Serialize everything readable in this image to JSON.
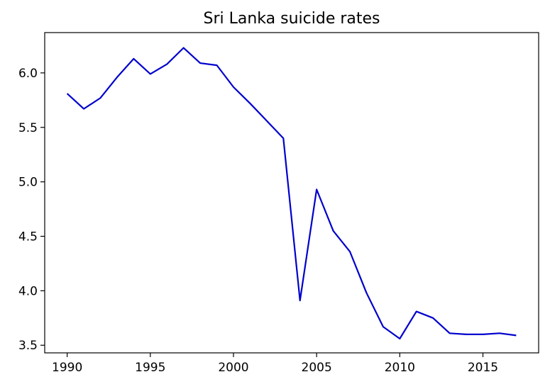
{
  "chart_data": {
    "type": "line",
    "title": "Sri Lanka suicide rates",
    "xlabel": "",
    "ylabel": "",
    "x": [
      1990,
      1991,
      1992,
      1993,
      1994,
      1995,
      1996,
      1997,
      1998,
      1999,
      2000,
      2001,
      2002,
      2003,
      2004,
      2005,
      2006,
      2007,
      2008,
      2009,
      2010,
      2011,
      2012,
      2013,
      2014,
      2015,
      2016,
      2017
    ],
    "series": [
      {
        "name": "",
        "color": "#0000cd",
        "values": [
          5.81,
          5.67,
          5.77,
          5.96,
          6.13,
          5.99,
          6.08,
          6.23,
          6.09,
          6.07,
          5.87,
          5.72,
          5.56,
          5.4,
          3.91,
          4.93,
          4.55,
          4.36,
          3.98,
          3.67,
          3.56,
          3.81,
          3.75,
          3.61,
          3.6,
          3.6,
          3.61,
          3.59
        ]
      }
    ],
    "xticks": [
      "1990",
      "1995",
      "2000",
      "2005",
      "2010",
      "2015"
    ],
    "yticks": [
      "3.5",
      "4.0",
      "4.5",
      "5.0",
      "5.5",
      "6.0"
    ],
    "xlim": [
      1988.65,
      2018.35
    ],
    "ylim": [
      3.43,
      6.37
    ],
    "grid": false,
    "legend": "none"
  }
}
